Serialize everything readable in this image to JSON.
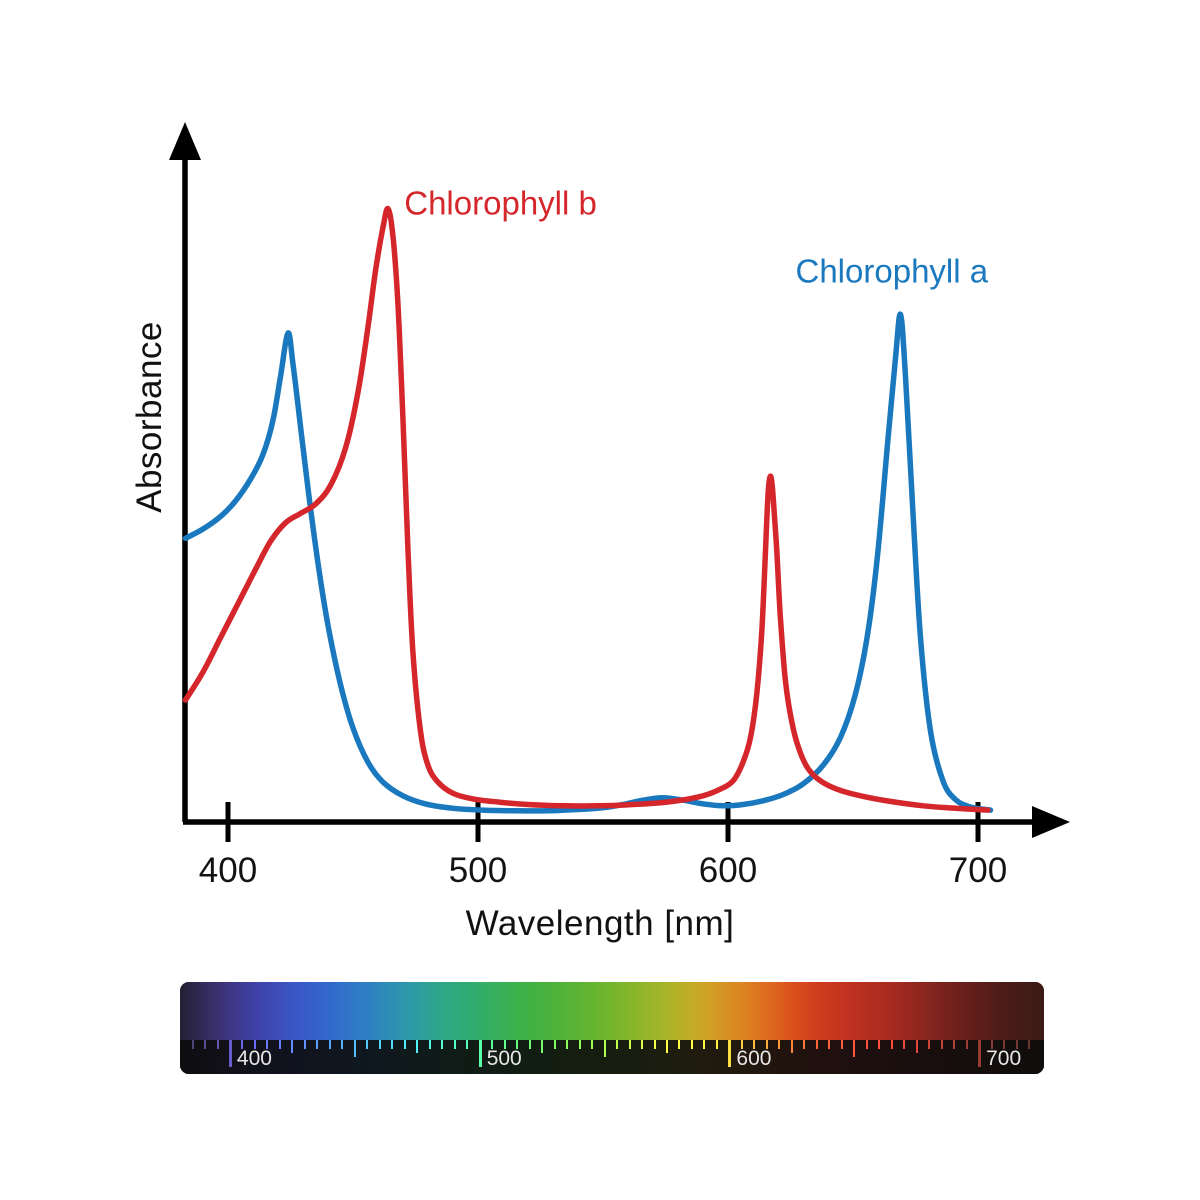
{
  "chart_data": {
    "type": "line",
    "title": "",
    "xlabel": "Wavelength [nm]",
    "ylabel": "Absorbance",
    "x_ticks": [
      400,
      500,
      600,
      700
    ],
    "x_range": [
      383,
      735
    ],
    "y_range": [
      0,
      1.05
    ],
    "grid": false,
    "legend_position": "annotations-on-curves",
    "axis_color": "#000000",
    "series": [
      {
        "name": "Chlorophyll a",
        "color": "#1a78be",
        "points": [
          [
            383,
            0.44
          ],
          [
            390,
            0.455
          ],
          [
            397,
            0.475
          ],
          [
            403,
            0.5
          ],
          [
            409,
            0.535
          ],
          [
            414,
            0.575
          ],
          [
            418,
            0.63
          ],
          [
            421,
            0.7
          ],
          [
            424,
            0.77
          ],
          [
            426,
            0.72
          ],
          [
            429,
            0.62
          ],
          [
            432,
            0.52
          ],
          [
            436,
            0.4
          ],
          [
            440,
            0.3
          ],
          [
            445,
            0.205
          ],
          [
            450,
            0.135
          ],
          [
            456,
            0.08
          ],
          [
            462,
            0.048
          ],
          [
            470,
            0.026
          ],
          [
            479,
            0.013
          ],
          [
            490,
            0.006
          ],
          [
            502,
            0.003
          ],
          [
            515,
            0.002
          ],
          [
            528,
            0.002
          ],
          [
            540,
            0.004
          ],
          [
            550,
            0.007
          ],
          [
            558,
            0.012
          ],
          [
            566,
            0.019
          ],
          [
            574,
            0.023
          ],
          [
            582,
            0.019
          ],
          [
            590,
            0.013
          ],
          [
            598,
            0.01
          ],
          [
            606,
            0.012
          ],
          [
            614,
            0.018
          ],
          [
            622,
            0.028
          ],
          [
            630,
            0.045
          ],
          [
            638,
            0.075
          ],
          [
            645,
            0.12
          ],
          [
            651,
            0.19
          ],
          [
            656,
            0.29
          ],
          [
            660,
            0.42
          ],
          [
            664,
            0.6
          ],
          [
            667,
            0.73
          ],
          [
            669,
            0.8
          ],
          [
            671,
            0.7
          ],
          [
            674,
            0.48
          ],
          [
            677,
            0.28
          ],
          [
            681,
            0.13
          ],
          [
            686,
            0.05
          ],
          [
            691,
            0.02
          ],
          [
            697,
            0.008
          ],
          [
            705,
            0.003
          ]
        ]
      },
      {
        "name": "Chlorophyll b",
        "color": "#d4262b",
        "points": [
          [
            383,
            0.18
          ],
          [
            390,
            0.225
          ],
          [
            397,
            0.28
          ],
          [
            404,
            0.335
          ],
          [
            411,
            0.39
          ],
          [
            417,
            0.435
          ],
          [
            423,
            0.465
          ],
          [
            429,
            0.48
          ],
          [
            435,
            0.495
          ],
          [
            441,
            0.525
          ],
          [
            447,
            0.585
          ],
          [
            452,
            0.675
          ],
          [
            456,
            0.78
          ],
          [
            459,
            0.87
          ],
          [
            462,
            0.94
          ],
          [
            464,
            0.97
          ],
          [
            466,
            0.925
          ],
          [
            468,
            0.815
          ],
          [
            470,
            0.63
          ],
          [
            472,
            0.42
          ],
          [
            474,
            0.255
          ],
          [
            477,
            0.13
          ],
          [
            480,
            0.075
          ],
          [
            484,
            0.048
          ],
          [
            490,
            0.03
          ],
          [
            498,
            0.021
          ],
          [
            508,
            0.016
          ],
          [
            520,
            0.012
          ],
          [
            534,
            0.01
          ],
          [
            548,
            0.01
          ],
          [
            562,
            0.012
          ],
          [
            576,
            0.016
          ],
          [
            588,
            0.024
          ],
          [
            596,
            0.035
          ],
          [
            602,
            0.05
          ],
          [
            606,
            0.08
          ],
          [
            609,
            0.12
          ],
          [
            611.5,
            0.19
          ],
          [
            613.5,
            0.29
          ],
          [
            615,
            0.42
          ],
          [
            616,
            0.51
          ],
          [
            617,
            0.54
          ],
          [
            618,
            0.51
          ],
          [
            619.5,
            0.42
          ],
          [
            621,
            0.31
          ],
          [
            623,
            0.21
          ],
          [
            625.5,
            0.145
          ],
          [
            628.5,
            0.1
          ],
          [
            632,
            0.07
          ],
          [
            637,
            0.05
          ],
          [
            644,
            0.036
          ],
          [
            653,
            0.026
          ],
          [
            665,
            0.017
          ],
          [
            678,
            0.01
          ],
          [
            691,
            0.006
          ],
          [
            704,
            0.003
          ]
        ]
      }
    ],
    "annotations": [
      {
        "text": "Chlorophyll b",
        "nm": 470.5,
        "a": 0.975,
        "color": "#d4262b"
      },
      {
        "text": "Chlorophyll a",
        "nm": 627,
        "a": 0.865,
        "color": "#1a78be"
      }
    ]
  },
  "spectrum_bar": {
    "labels": [
      "400",
      "500",
      "600",
      "700"
    ],
    "label_nms": [
      400,
      500,
      600,
      700
    ],
    "nm_min": 380,
    "nm_max": 726,
    "tick_step": 5,
    "strip_color": "#0c0c0c",
    "label_color": "#e6e6e6",
    "stops": [
      [
        380,
        "#241f33"
      ],
      [
        395,
        "#3b3170"
      ],
      [
        410,
        "#4041a8"
      ],
      [
        425,
        "#3a55c5"
      ],
      [
        440,
        "#3269cd"
      ],
      [
        455,
        "#2f80c3"
      ],
      [
        470,
        "#2d96ab"
      ],
      [
        485,
        "#2ea889"
      ],
      [
        500,
        "#32ad69"
      ],
      [
        515,
        "#3cb14b"
      ],
      [
        530,
        "#4db23a"
      ],
      [
        545,
        "#64b430"
      ],
      [
        560,
        "#84b62b"
      ],
      [
        575,
        "#a9b428"
      ],
      [
        585,
        "#c4ab26"
      ],
      [
        595,
        "#d49a24"
      ],
      [
        605,
        "#dc8422"
      ],
      [
        615,
        "#de6c1f"
      ],
      [
        625,
        "#da521c"
      ],
      [
        635,
        "#d03d1e"
      ],
      [
        650,
        "#bd3020"
      ],
      [
        665,
        "#a62a20"
      ],
      [
        680,
        "#86251e"
      ],
      [
        695,
        "#671f1b"
      ],
      [
        710,
        "#4c1c18"
      ],
      [
        726,
        "#3a1a16"
      ]
    ]
  }
}
